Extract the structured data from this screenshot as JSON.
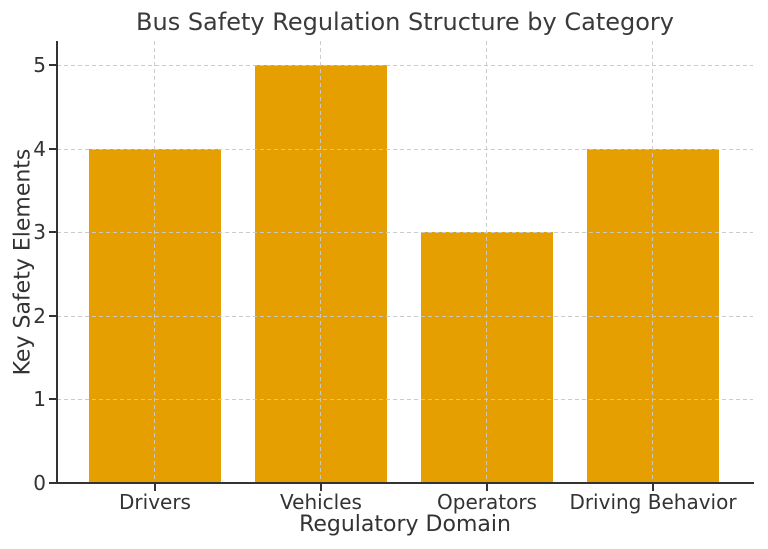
{
  "chart_data": {
    "type": "bar",
    "title": "Bus Safety Regulation Structure by Category",
    "xlabel": "Regulatory Domain",
    "ylabel": "Key Safety Elements",
    "categories": [
      "Drivers",
      "Vehicles",
      "Operators",
      "Driving Behavior"
    ],
    "values": [
      4,
      5,
      3,
      4
    ],
    "yticks": [
      0,
      1,
      2,
      3,
      4,
      5
    ],
    "ylim": [
      0,
      5.29
    ],
    "bar_color": "#E69F00",
    "grid": "dashed, light gray, both axes, drawn above bars",
    "legend": "none",
    "spine_color": "#333333",
    "text_color": "#333333",
    "background_color": "#ffffff"
  }
}
